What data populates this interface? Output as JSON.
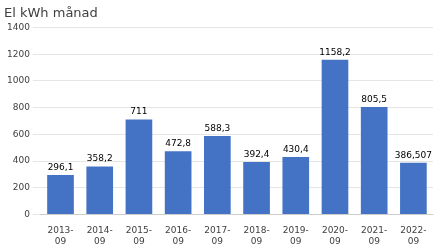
{
  "chart_data": {
    "type": "bar",
    "title": "El kWh månad",
    "categories": [
      "2013-\n09",
      "2014-\n09",
      "2015-\n09",
      "2016-\n09",
      "2017-\n09",
      "2018-\n09",
      "2019-\n09",
      "2020-\n09",
      "2021-\n09",
      "2022-\n09"
    ],
    "values": [
      296.1,
      358.2,
      711,
      472.8,
      588.3,
      392.4,
      430.4,
      1158.2,
      805.5,
      386.507
    ],
    "value_labels": [
      "296,1",
      "358,2",
      "711",
      "472,8",
      "588,3",
      "392,4",
      "430,4",
      "1158,2",
      "805,5",
      "386,507"
    ],
    "data_labels": true,
    "color": "#4472C4",
    "ylim": [
      0,
      1400
    ],
    "yticks": [
      0,
      200,
      400,
      600,
      800,
      1000,
      1200,
      1400
    ],
    "grid": true
  }
}
